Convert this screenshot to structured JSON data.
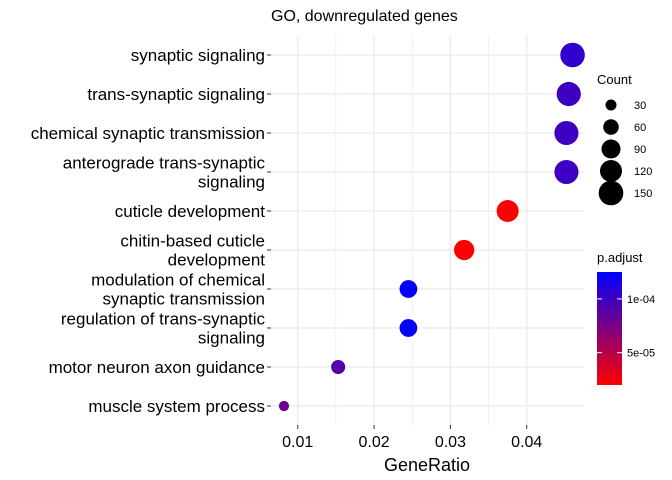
{
  "chart_data": {
    "type": "scatter",
    "title": "GO, downregulated genes",
    "xlabel": "GeneRatio",
    "ylabel": "",
    "xlim": [
      0.0065,
      0.0475
    ],
    "x_ticks": [
      "0.01",
      "0.02",
      "0.03",
      "0.04"
    ],
    "x_tick_values": [
      0.01,
      0.02,
      0.03,
      0.04
    ],
    "grid": true,
    "background": "#ffffff",
    "grid_color": "#ebebeb",
    "categories": [
      [
        "synaptic signaling"
      ],
      [
        "trans-synaptic signaling"
      ],
      [
        "chemical synaptic transmission"
      ],
      [
        "anterograde trans-synaptic",
        "signaling"
      ],
      [
        "cuticle development"
      ],
      [
        "chitin-based cuticle",
        "development"
      ],
      [
        "modulation of chemical",
        "synaptic transmission"
      ],
      [
        "regulation of trans-synaptic",
        "signaling"
      ],
      [
        "motor neuron axon guidance"
      ],
      [
        "muscle system process"
      ]
    ],
    "points": [
      {
        "term": "synaptic signaling",
        "x": 0.046,
        "count": 150,
        "p_adjust": 0.000105
      },
      {
        "term": "trans-synaptic signaling",
        "x": 0.0455,
        "count": 145,
        "p_adjust": 0.0001
      },
      {
        "term": "chemical synaptic transmission",
        "x": 0.0452,
        "count": 144,
        "p_adjust": 0.0001
      },
      {
        "term": "anterograde trans-synaptic signaling",
        "x": 0.0452,
        "count": 144,
        "p_adjust": 0.0001
      },
      {
        "term": "cuticle development",
        "x": 0.0375,
        "count": 120,
        "p_adjust": 2e-05
      },
      {
        "term": "chitin-based cuticle development",
        "x": 0.0318,
        "count": 102,
        "p_adjust": 2e-05
      },
      {
        "term": "modulation of chemical synaptic transmission",
        "x": 0.0245,
        "count": 78,
        "p_adjust": 0.000125
      },
      {
        "term": "regulation of trans-synaptic signaling",
        "x": 0.0245,
        "count": 78,
        "p_adjust": 0.000125
      },
      {
        "term": "motor neuron axon guidance",
        "x": 0.0153,
        "count": 49,
        "p_adjust": 9e-05
      },
      {
        "term": "muscle system process",
        "x": 0.0082,
        "count": 26,
        "p_adjust": 8e-05
      }
    ],
    "legend_count": {
      "title": "Count",
      "placement": "right",
      "values": [
        30,
        60,
        90,
        120,
        150
      ],
      "labels": [
        "30",
        "60",
        "90",
        "120",
        "150"
      ]
    },
    "legend_color": {
      "title": "p.adjust",
      "placement": "right",
      "low_color": "#ff0000",
      "high_color": "#0000ff",
      "range": [
        2e-05,
        0.000125
      ],
      "tick_values": [
        0.0001,
        5e-05
      ],
      "tick_labels": [
        "1e-04",
        "5e-05"
      ]
    }
  }
}
